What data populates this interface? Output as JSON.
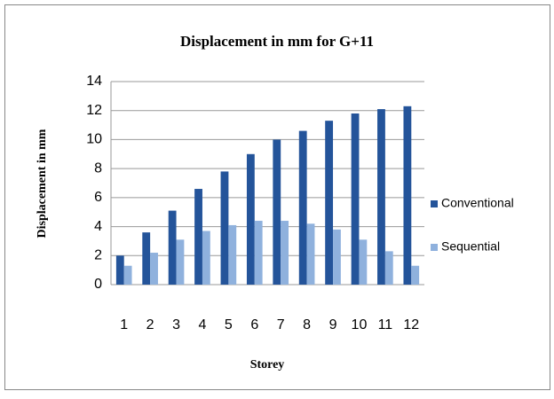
{
  "chart_data": {
    "type": "bar",
    "title": "Displacement in mm for G+11",
    "x_label": "Storey",
    "y_label": "Displacement in mm",
    "categories": [
      "1",
      "2",
      "3",
      "4",
      "5",
      "6",
      "7",
      "8",
      "9",
      "10",
      "11",
      "12"
    ],
    "series": [
      {
        "name": "Conventional",
        "color": "#24549a",
        "values": [
          2.0,
          3.6,
          5.1,
          6.6,
          7.8,
          9.0,
          10.0,
          10.6,
          11.3,
          11.8,
          12.1,
          12.3
        ]
      },
      {
        "name": "Sequential",
        "color": "#8fb1dd",
        "values": [
          1.3,
          2.2,
          3.1,
          3.7,
          4.1,
          4.4,
          4.4,
          4.2,
          3.8,
          3.1,
          2.3,
          1.3
        ]
      }
    ],
    "ylim": [
      0,
      14
    ],
    "yticks": [
      0,
      2,
      4,
      6,
      8,
      10,
      12,
      14
    ],
    "grid": true,
    "legend": "right"
  }
}
